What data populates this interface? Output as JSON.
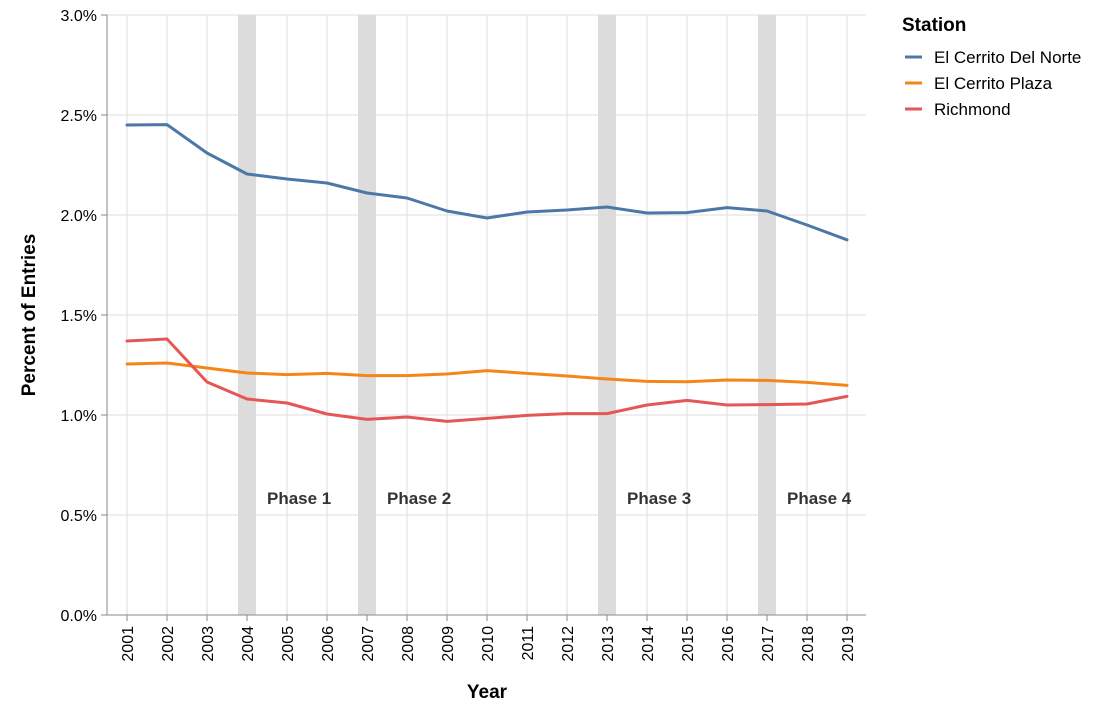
{
  "chart_data": {
    "type": "line",
    "x": [
      "2001",
      "2002",
      "2003",
      "2004",
      "2005",
      "2006",
      "2007",
      "2008",
      "2009",
      "2010",
      "2011",
      "2012",
      "2013",
      "2014",
      "2015",
      "2016",
      "2017",
      "2018",
      "2019"
    ],
    "xlabel": "Year",
    "ylabel": "Percent of Entries",
    "ylim": [
      0,
      0.03
    ],
    "yticks": [
      0,
      0.005,
      0.01,
      0.015,
      0.02,
      0.025,
      0.03
    ],
    "ytick_labels": [
      "0.0%",
      "0.5%",
      "1.0%",
      "1.5%",
      "2.0%",
      "2.5%",
      "3.0%"
    ],
    "grid": true,
    "legend": {
      "title": "Station",
      "placement": "top-right"
    },
    "series": [
      {
        "name": "El Cerrito Del Norte",
        "color": "#4c78a8",
        "values": [
          0.0245,
          0.02452,
          0.0231,
          0.02205,
          0.0218,
          0.0216,
          0.0211,
          0.02085,
          0.0202,
          0.01985,
          0.02015,
          0.02025,
          0.0204,
          0.0201,
          0.02012,
          0.02037,
          0.0202,
          0.0195,
          0.01876
        ]
      },
      {
        "name": "El Cerrito Plaza",
        "color": "#f58518",
        "values": [
          0.01255,
          0.0126,
          0.01235,
          0.0121,
          0.01202,
          0.01208,
          0.01197,
          0.01197,
          0.01205,
          0.01222,
          0.01208,
          0.01195,
          0.0118,
          0.01168,
          0.01166,
          0.01175,
          0.01173,
          0.01163,
          0.01148
        ]
      },
      {
        "name": "Richmond",
        "color": "#e45756",
        "values": [
          0.0137,
          0.0138,
          0.01165,
          0.0108,
          0.0106,
          0.01005,
          0.00978,
          0.0099,
          0.00968,
          0.00983,
          0.00998,
          0.01007,
          0.01007,
          0.0105,
          0.01073,
          0.0105,
          0.01052,
          0.01055,
          0.01093
        ]
      }
    ],
    "annotations": [
      {
        "label": "Phase 1",
        "year": "2004"
      },
      {
        "label": "Phase 2",
        "year": "2007"
      },
      {
        "label": "Phase 3",
        "year": "2013"
      },
      {
        "label": "Phase 4",
        "year": "2017"
      }
    ],
    "band_color": "#dcdcdc"
  }
}
